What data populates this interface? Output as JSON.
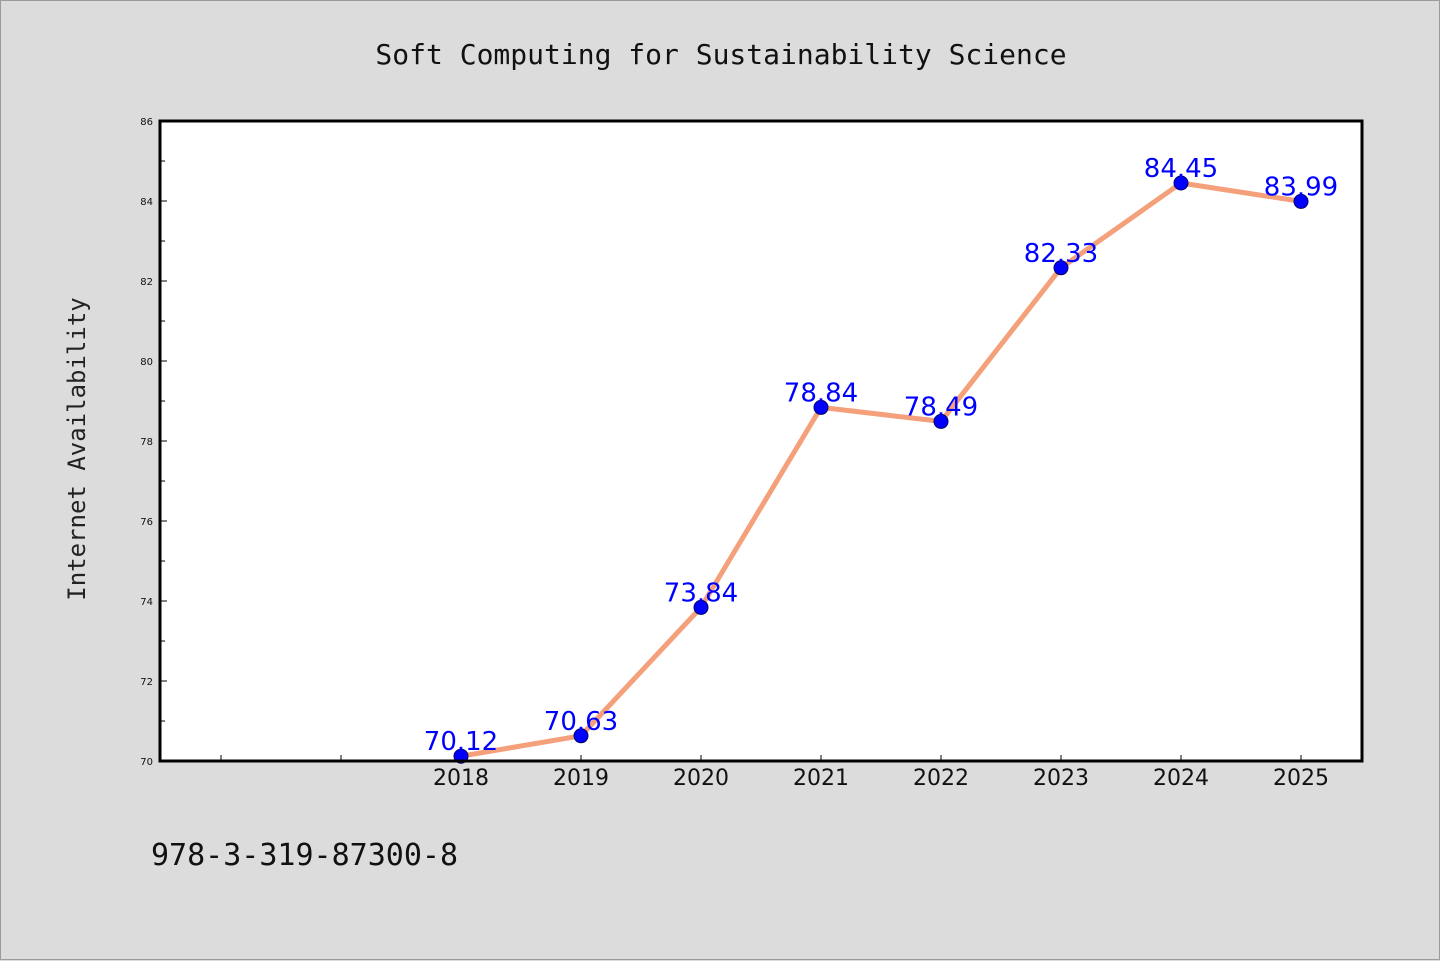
{
  "chart_data": {
    "type": "line",
    "title": "Soft Computing for Sustainability Science",
    "xlabel": "",
    "ylabel": "Internet Availability",
    "x": [
      "2018",
      "2019",
      "2020",
      "2021",
      "2022",
      "2023",
      "2024",
      "2025"
    ],
    "series": [
      {
        "values": [
          70.12,
          70.63,
          73.84,
          78.84,
          78.49,
          82.33,
          84.45,
          83.99
        ]
      }
    ],
    "data_labels": [
      "70.12",
      "70.63",
      "73.84",
      "78.84",
      "78.49",
      "82.33",
      "84.45",
      "83.99"
    ],
    "ylim": [
      70,
      86
    ],
    "yticks": [
      "70",
      "72",
      "74",
      "76",
      "78",
      "80",
      "82",
      "84",
      "86"
    ],
    "grid": false,
    "colors": {
      "line": "#f4a07a",
      "marker": "#0000ff",
      "label": "#0000ff",
      "background": "#dcdcdc",
      "plot_background": "#ffffff"
    }
  },
  "footer": {
    "text": "978-3-319-87300-8"
  }
}
